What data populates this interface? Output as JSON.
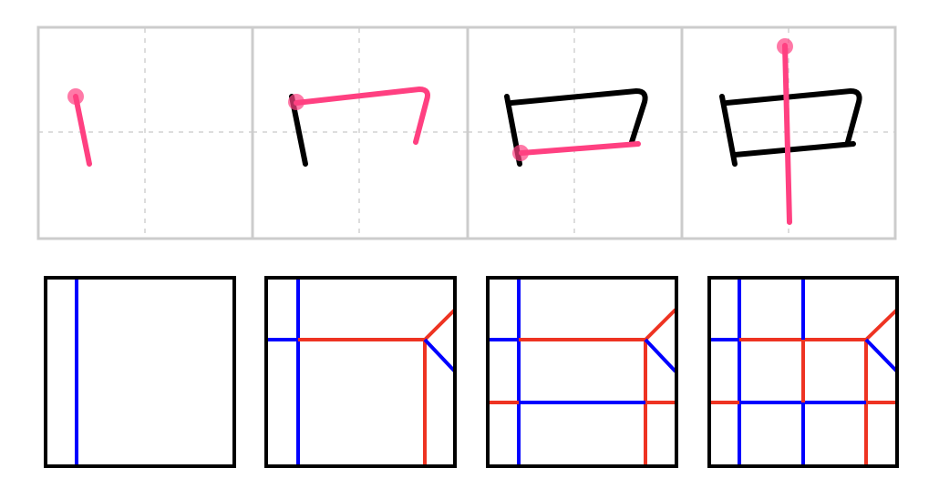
{
  "figure": {
    "character": "中",
    "stroke_order": {
      "panel_count": 4,
      "colors": {
        "current_stroke": "#ff4081",
        "previous_strokes": "#000000",
        "grid_border": "#cccccc",
        "grid_guides": "#dddddd"
      }
    },
    "crease_patterns": {
      "panel_count": 4,
      "colors": {
        "border": "#000000",
        "valley_fold": "#0000ff",
        "mountain_fold": "#ee3322"
      }
    }
  }
}
